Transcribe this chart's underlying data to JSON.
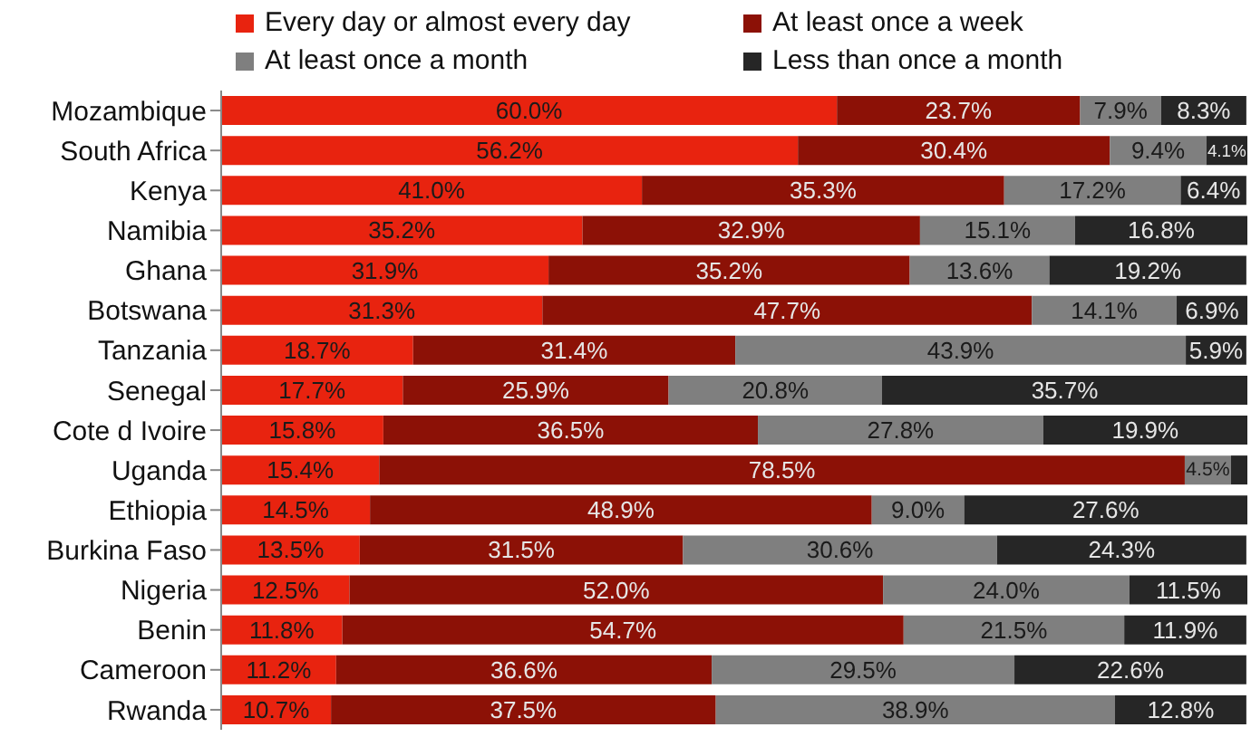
{
  "chart_data": {
    "type": "bar",
    "orientation": "horizontal",
    "stacked": true,
    "legend": "top",
    "xlim": [
      0,
      100
    ],
    "tick_labels": "y",
    "categories": [
      "Mozambique",
      "South Africa",
      "Kenya",
      "Namibia",
      "Ghana",
      "Botswana",
      "Tanzania",
      "Senegal",
      "Cote d Ivoire",
      "Uganda",
      "Ethiopia",
      "Burkina Faso",
      "Nigeria",
      "Benin",
      "Cameroon",
      "Rwanda"
    ],
    "series": [
      {
        "name": "Every day or almost every day",
        "color": "#e8230f",
        "values": [
          60.0,
          56.2,
          41.0,
          35.2,
          31.9,
          31.3,
          18.7,
          17.7,
          15.8,
          15.4,
          14.5,
          13.5,
          12.5,
          11.8,
          11.2,
          10.7
        ],
        "value_labels": [
          "60.0%",
          "56.2%",
          "41.0%",
          "35.2%",
          "31.9%",
          "31.3%",
          "18.7%",
          "17.7%",
          "15.8%",
          "15.4%",
          "14.5%",
          "13.5%",
          "12.5%",
          "11.8%",
          "11.2%",
          "10.7%"
        ]
      },
      {
        "name": "At least once a week",
        "color": "#8c1106",
        "values": [
          23.7,
          30.4,
          35.3,
          32.9,
          35.2,
          47.7,
          31.4,
          25.9,
          36.5,
          78.5,
          48.9,
          31.5,
          52.0,
          54.7,
          36.6,
          37.5
        ],
        "value_labels": [
          "23.7%",
          "30.4%",
          "35.3%",
          "32.9%",
          "35.2%",
          "47.7%",
          "31.4%",
          "25.9%",
          "36.5%",
          "78.5%",
          "48.9%",
          "31.5%",
          "52.0%",
          "54.7%",
          "36.6%",
          "37.5%"
        ]
      },
      {
        "name": "At least once a month",
        "color": "#7f7f7f",
        "values": [
          7.9,
          9.4,
          17.2,
          15.1,
          13.6,
          14.1,
          43.9,
          20.8,
          27.8,
          4.5,
          9.0,
          30.6,
          24.0,
          21.5,
          29.5,
          38.9
        ],
        "value_labels": [
          "7.9%",
          "9.4%",
          "17.2%",
          "15.1%",
          "13.6%",
          "14.1%",
          "43.9%",
          "20.8%",
          "27.8%",
          "4.5%",
          "9.0%",
          "30.6%",
          "24.0%",
          "21.5%",
          "29.5%",
          "38.9%"
        ]
      },
      {
        "name": "Less than once a month",
        "color": "#262626",
        "values": [
          8.3,
          4.1,
          6.4,
          16.8,
          19.2,
          6.9,
          5.9,
          35.7,
          19.9,
          1.6,
          27.6,
          24.3,
          11.5,
          11.9,
          22.6,
          12.8
        ],
        "value_labels": [
          "8.3%",
          "4.1%",
          "6.4%",
          "16.8%",
          "19.2%",
          "6.9%",
          "5.9%",
          "35.7%",
          "19.9%",
          null,
          "27.6%",
          "24.3%",
          "11.5%",
          "11.9%",
          "22.6%",
          "12.8%"
        ]
      }
    ]
  }
}
